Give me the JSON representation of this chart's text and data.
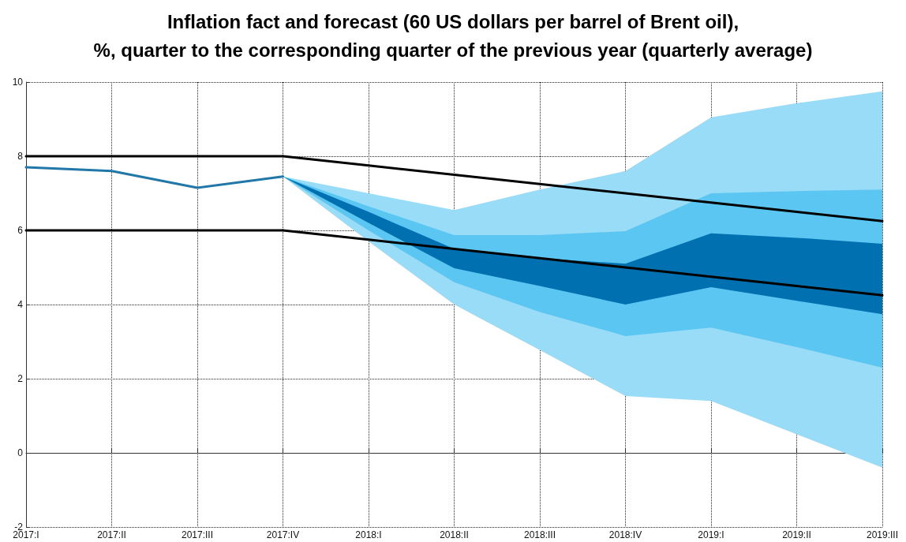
{
  "chart_data": {
    "type": "line",
    "title": "Inflation fact and forecast (60 US dollars per barrel of Brent oil),\n%, quarter to the corresponding quarter of the previous year (quarterly average)",
    "categories": [
      "2017:I",
      "2017:II",
      "2017:III",
      "2017:IV",
      "2018:I",
      "2018:II",
      "2018:III",
      "2018:IV",
      "2019:I",
      "2019:II",
      "2019:III"
    ],
    "ylim": [
      -2,
      10
    ],
    "yticks": [
      -2,
      0,
      2,
      4,
      6,
      8,
      10
    ],
    "grid": true,
    "marker": "none",
    "series": [
      {
        "type": "area",
        "color": "#99dcf8",
        "values": [
          null,
          null,
          null,
          null,
          null,
          null,
          null,
          null,
          null,
          null,
          null
        ],
        "lower": [
          null,
          null,
          null,
          7.45,
          5.7,
          4.0,
          2.77,
          1.53,
          1.4,
          0.5,
          -0.4
        ],
        "upper": [
          null,
          null,
          null,
          7.45,
          7.0,
          6.55,
          7.1,
          7.6,
          9.05,
          9.43,
          9.75
        ]
      },
      {
        "type": "area",
        "color": "#5bc6f2",
        "values": [
          null,
          null,
          null,
          null,
          null,
          null,
          null,
          null,
          null,
          null,
          null
        ],
        "lower": [
          null,
          null,
          null,
          7.45,
          6.0,
          4.6,
          3.8,
          3.15,
          3.38,
          2.85,
          2.3
        ],
        "upper": [
          null,
          null,
          null,
          7.45,
          6.65,
          5.87,
          5.87,
          5.98,
          7.0,
          7.06,
          7.1
        ]
      },
      {
        "type": "area",
        "color": "#0070b0",
        "values": [
          null,
          null,
          null,
          null,
          null,
          null,
          null,
          null,
          null,
          null,
          null
        ],
        "lower": [
          null,
          null,
          null,
          7.45,
          6.2,
          4.98,
          4.5,
          4.0,
          4.47,
          4.1,
          3.74
        ],
        "upper": [
          null,
          null,
          null,
          7.45,
          6.5,
          5.5,
          5.25,
          5.1,
          5.92,
          5.8,
          5.64
        ]
      },
      {
        "type": "line",
        "color": "#000000",
        "values": [
          8,
          8,
          8,
          8,
          7.75,
          7.5,
          7.25,
          7.0,
          6.75,
          6.5,
          6.25
        ]
      },
      {
        "type": "line",
        "color": "#000000",
        "values": [
          6,
          6,
          6,
          6,
          5.75,
          5.5,
          5.25,
          5.0,
          4.75,
          4.5,
          4.25
        ]
      },
      {
        "type": "line",
        "color": "#2077a8",
        "values": [
          7.7,
          7.6,
          7.15,
          7.45,
          null,
          null,
          null,
          null,
          null,
          null,
          null
        ]
      }
    ]
  }
}
